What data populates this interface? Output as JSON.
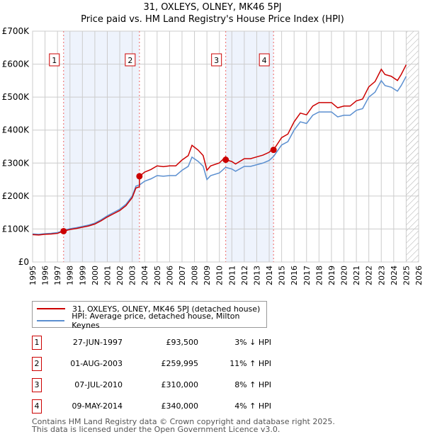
{
  "title": "31, OXLEYS, OLNEY, MK46 5PJ",
  "subtitle": "Price paid vs. HM Land Registry's House Price Index (HPI)",
  "legend": {
    "property": "31, OXLEYS, OLNEY, MK46 5PJ (detached house)",
    "hpi": "HPI: Average price, detached house, Milton Keynes"
  },
  "colors": {
    "property": "#cc0000",
    "hpi": "#5b8fd0",
    "shade": "#eef3fc",
    "grid": "#cccccc"
  },
  "sales": [
    {
      "num": "1",
      "date": "27-JUN-1997",
      "price": "£93,500",
      "hpi": "3% ↓ HPI",
      "year": 1997.49,
      "value": 93500
    },
    {
      "num": "2",
      "date": "01-AUG-2003",
      "price": "£259,995",
      "hpi": "11% ↑ HPI",
      "year": 2003.58,
      "value": 259995
    },
    {
      "num": "3",
      "date": "07-JUL-2010",
      "price": "£310,000",
      "hpi": "8% ↑ HPI",
      "year": 2010.51,
      "value": 310000
    },
    {
      "num": "4",
      "date": "09-MAY-2014",
      "price": "£340,000",
      "hpi": "4% ↑ HPI",
      "year": 2014.35,
      "value": 340000
    }
  ],
  "footer": [
    "Contains HM Land Registry data © Crown copyright and database right 2025.",
    "This data is licensed under the Open Government Licence v3.0."
  ],
  "chart_data": {
    "type": "line",
    "title": "31, OXLEYS, OLNEY, MK46 5PJ",
    "subtitle": "Price paid vs. HM Land Registry's House Price Index (HPI)",
    "xlim": [
      1995,
      2026
    ],
    "ylim": [
      0,
      700000
    ],
    "x_ticks": [
      "1995",
      "1996",
      "1997",
      "1998",
      "1999",
      "2000",
      "2001",
      "2002",
      "2003",
      "2004",
      "2005",
      "2006",
      "2007",
      "2008",
      "2009",
      "2010",
      "2011",
      "2012",
      "2013",
      "2014",
      "2015",
      "2016",
      "2017",
      "2018",
      "2019",
      "2020",
      "2021",
      "2022",
      "2023",
      "2024",
      "2025",
      "2026"
    ],
    "y_ticks": [
      {
        "v": 0,
        "label": "£0"
      },
      {
        "v": 100000,
        "label": "£100K"
      },
      {
        "v": 200000,
        "label": "£200K"
      },
      {
        "v": 300000,
        "label": "£300K"
      },
      {
        "v": 400000,
        "label": "£400K"
      },
      {
        "v": 500000,
        "label": "£500K"
      },
      {
        "v": 600000,
        "label": "£600K"
      },
      {
        "v": 700000,
        "label": "£700K"
      }
    ],
    "shaded_ranges": [
      [
        1997.49,
        2003.58
      ],
      [
        2010.51,
        2014.35
      ]
    ],
    "forecast_hatch_from": 2025.0,
    "hpi_series": {
      "name": "HPI: Average price, detached house, Milton Keynes",
      "x": [
        1995,
        1995.5,
        1996,
        1996.5,
        1997,
        1997.5,
        1998,
        1998.5,
        1999,
        1999.5,
        2000,
        2000.5,
        2001,
        2001.5,
        2002,
        2002.5,
        2003,
        2003.3,
        2003.6,
        2004,
        2004.5,
        2005,
        2005.5,
        2006,
        2006.5,
        2007,
        2007.5,
        2007.8,
        2008.3,
        2008.7,
        2009.0,
        2009.3,
        2010,
        2010.5,
        2011,
        2011.3,
        2012,
        2012.5,
        2013,
        2013.5,
        2014,
        2014.35,
        2015,
        2015.5,
        2016,
        2016.5,
        2017,
        2017.5,
        2018,
        2018.5,
        2019,
        2019.5,
        2020,
        2020.5,
        2021,
        2021.5,
        2022,
        2022.5,
        2023,
        2023.3,
        2023.8,
        2024.3,
        2024.6,
        2025
      ],
      "y": [
        85000,
        84000,
        86000,
        87000,
        89000,
        96000,
        101000,
        104000,
        108000,
        112000,
        118000,
        128000,
        140000,
        150000,
        160000,
        175000,
        200000,
        230000,
        234000,
        245000,
        252000,
        262000,
        260000,
        262000,
        262000,
        278000,
        290000,
        318000,
        305000,
        290000,
        250000,
        262000,
        270000,
        287000,
        282000,
        275000,
        290000,
        290000,
        295000,
        300000,
        308000,
        320000,
        355000,
        365000,
        400000,
        425000,
        420000,
        445000,
        455000,
        455000,
        455000,
        440000,
        445000,
        445000,
        460000,
        465000,
        500000,
        515000,
        550000,
        535000,
        530000,
        518000,
        535000,
        563000
      ]
    }
  }
}
